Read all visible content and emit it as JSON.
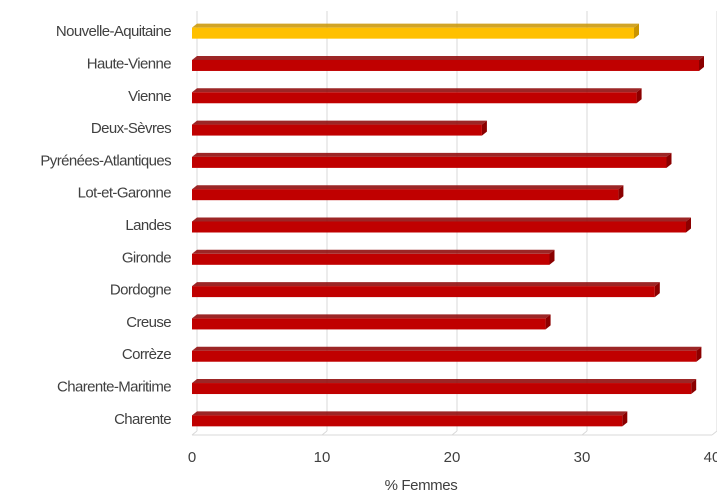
{
  "chart_data": {
    "type": "bar",
    "orientation": "horizontal",
    "categories": [
      "Nouvelle-Aquitaine",
      "Haute-Vienne",
      "Vienne",
      "Deux-Sèvres",
      "Pyrénées-Atlantiques",
      "Lot-et-Garonne",
      "Landes",
      "Gironde",
      "Dordogne",
      "Creuse",
      "Corrèze",
      "Charente-Maritime",
      "Charente"
    ],
    "values": [
      34,
      39,
      34.2,
      22.3,
      36.5,
      32.8,
      38,
      27.5,
      35.6,
      27.2,
      38.8,
      38.4,
      33.1
    ],
    "highlight_index": 0,
    "colors": {
      "default": "#c00000",
      "default_dark": "#8b0000",
      "highlight": "#ffc000",
      "highlight_dark": "#c99400",
      "grid": "#d9d9d9"
    },
    "xlabel": "% Femmes",
    "xlim": [
      0,
      40
    ],
    "xticks": [
      "0",
      "10",
      "20",
      "30",
      "40"
    ],
    "grid": true
  }
}
